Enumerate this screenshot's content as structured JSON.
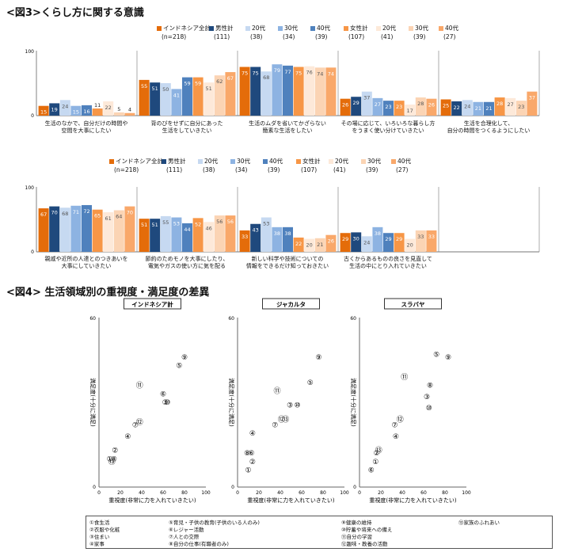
{
  "fig3": {
    "title": "<図3>くらし方に関する意識",
    "legend": [
      {
        "name": "インドネシア全計",
        "n": "(n=218)",
        "color": "#E46C0A"
      },
      {
        "name": "男性計",
        "n": "(111)",
        "color": "#1F497D"
      },
      {
        "name": "20代",
        "n": "(38)",
        "color": "#C6D9F1"
      },
      {
        "name": "30代",
        "n": "(34)",
        "color": "#8DB3E2"
      },
      {
        "name": "40代",
        "n": "(39)",
        "color": "#4F81BD"
      },
      {
        "name": "女性計",
        "n": "(107)",
        "color": "#F79646"
      },
      {
        "name": "20代",
        "n": "(41)",
        "color": "#FDE9D9"
      },
      {
        "name": "30代",
        "n": "(39)",
        "color": "#FBD4B4"
      },
      {
        "name": "40代",
        "n": "(27)",
        "color": "#F9A86A"
      }
    ]
  },
  "chart_data": [
    {
      "type": "bar",
      "title": "くらし方に関する意識 (上段)",
      "ylim": [
        0,
        100
      ],
      "yticks": [
        "0",
        "100"
      ],
      "series_names": [
        "インドネシア全計",
        "男性計",
        "20代",
        "30代",
        "40代",
        "女性計",
        "20代",
        "30代",
        "40代"
      ],
      "categories": [
        "生活のなかで、自分だけの時間や\n空間を大事にしたい",
        "背のびをせずに自分にあった\n生活をしていきたい",
        "生活のムダを省いてかざらない\n簡素な生活をしたい",
        "その場に応じて、いろいろな暮らし方\nをうまく使い分けていきたい",
        "生活を合理化して、\n自分の時間をつくるようにしたい"
      ],
      "values": [
        [
          15,
          19,
          24,
          15,
          16,
          11,
          22,
          5,
          4
        ],
        [
          55,
          51,
          50,
          41,
          59,
          59,
          51,
          62,
          67
        ],
        [
          75,
          75,
          68,
          79,
          77,
          75,
          76,
          74,
          74
        ],
        [
          26,
          29,
          37,
          27,
          23,
          23,
          17,
          28,
          26
        ],
        [
          25,
          22,
          24,
          21,
          21,
          28,
          27,
          23,
          37
        ]
      ],
      "labels": [
        [
          "15",
          "19",
          "24",
          "15",
          "16",
          "11",
          "22",
          "5",
          "4"
        ],
        [
          "55",
          "51",
          "50",
          "41",
          "59",
          "59",
          "51",
          "62",
          "67"
        ],
        [
          "75",
          "75",
          "68",
          "79",
          "77",
          "75",
          "76",
          "74",
          "74"
        ],
        [
          "26",
          "29",
          "37",
          "27",
          "23",
          "23",
          "17",
          "28",
          "26"
        ],
        [
          "25",
          "22",
          "24",
          "21",
          "21",
          "28",
          "27",
          "23",
          "37"
        ]
      ]
    },
    {
      "type": "bar",
      "title": "くらし方に関する意識 (下段)",
      "ylim": [
        0,
        100
      ],
      "yticks": [
        "0",
        "100"
      ],
      "series_names": [
        "インドネシア全計",
        "男性計",
        "20代",
        "30代",
        "40代",
        "女性計",
        "20代",
        "30代",
        "40代"
      ],
      "categories": [
        "親戚や近所の人達とのつきあいを\n大事にしていきたい",
        "節約のためモノを大事にしたり、\n電気やガスの使い方に気を配る",
        "新しい科学や技術についての\n情報をできるだけ知っておきたい",
        "古くからあるものの良さを見直して\n生活の中にとり入れていきたい"
      ],
      "values": [
        [
          67,
          70,
          68,
          71,
          72,
          65,
          61,
          64,
          70
        ],
        [
          51,
          51,
          55,
          53,
          44,
          52,
          46,
          56,
          56
        ],
        [
          33,
          43,
          53,
          38,
          38,
          22,
          20,
          21,
          26
        ],
        [
          29,
          30,
          24,
          38,
          29,
          29,
          20,
          33,
          33
        ]
      ],
      "labels": [
        [
          "67",
          "70",
          "68",
          "71",
          "72",
          "65",
          "61",
          "64",
          "70"
        ],
        [
          "51",
          "51",
          "55",
          "53",
          "44",
          "52",
          "46",
          "56",
          "56"
        ],
        [
          "33",
          "43",
          "53",
          "38",
          "38",
          "22",
          "20",
          "21",
          "26"
        ],
        [
          "29",
          "30",
          "24",
          "38",
          "29",
          "29",
          "20",
          "33",
          "33"
        ]
      ]
    },
    {
      "type": "scatter",
      "title": "インドネシア計",
      "xlabel": "重視度(非常に力を入れていきたい)",
      "ylabel": "満足度(十分に満足)",
      "xlim": [
        0,
        100
      ],
      "ylim": [
        0,
        60
      ],
      "xticks": [
        "0",
        "20",
        "40",
        "60",
        "80",
        "100"
      ],
      "yticks": [
        "0",
        "60"
      ],
      "points": [
        {
          "label": "①",
          "x": 10,
          "y": 10
        },
        {
          "label": "②",
          "x": 15,
          "y": 13
        },
        {
          "label": "③",
          "x": 62,
          "y": 30
        },
        {
          "label": "④",
          "x": 27,
          "y": 18
        },
        {
          "label": "⑤",
          "x": 75,
          "y": 43
        },
        {
          "label": "⑥",
          "x": 60,
          "y": 33
        },
        {
          "label": "⑦",
          "x": 34,
          "y": 22
        },
        {
          "label": "⑧",
          "x": 14,
          "y": 10
        },
        {
          "label": "⑨",
          "x": 80,
          "y": 46
        },
        {
          "label": "⑩",
          "x": 64,
          "y": 30
        },
        {
          "label": "⑪",
          "x": 38,
          "y": 36
        },
        {
          "label": "⑫",
          "x": 38,
          "y": 23
        },
        {
          "label": "⑬",
          "x": 12,
          "y": 9
        }
      ]
    },
    {
      "type": "scatter",
      "title": "ジャカルタ",
      "xlabel": "重視度(非常に力を入れていきたい)",
      "ylabel": "満足度(十分に満足)",
      "xlim": [
        0,
        100
      ],
      "ylim": [
        0,
        60
      ],
      "xticks": [
        "0",
        "20",
        "40",
        "60",
        "80",
        "100"
      ],
      "yticks": [
        "0",
        "60"
      ],
      "points": [
        {
          "label": "①",
          "x": 10,
          "y": 6
        },
        {
          "label": "②",
          "x": 14,
          "y": 9
        },
        {
          "label": "③",
          "x": 49,
          "y": 29
        },
        {
          "label": "④",
          "x": 14,
          "y": 19
        },
        {
          "label": "⑤",
          "x": 68,
          "y": 37
        },
        {
          "label": "⑥",
          "x": 13,
          "y": 12
        },
        {
          "label": "⑦",
          "x": 35,
          "y": 22
        },
        {
          "label": "⑧",
          "x": 9,
          "y": 12
        },
        {
          "label": "⑨",
          "x": 76,
          "y": 46
        },
        {
          "label": "⑩",
          "x": 56,
          "y": 29
        },
        {
          "label": "⑪",
          "x": 37,
          "y": 34
        },
        {
          "label": "⑫",
          "x": 41,
          "y": 24
        },
        {
          "label": "⑬",
          "x": 45,
          "y": 24
        }
      ]
    },
    {
      "type": "scatter",
      "title": "スラバヤ",
      "xlabel": "重視度(非常に力を入れていきたい)",
      "ylabel": "満足度(十分に満足)",
      "xlim": [
        0,
        100
      ],
      "ylim": [
        0,
        60
      ],
      "xticks": [
        "0",
        "20",
        "40",
        "60",
        "80",
        "100"
      ],
      "yticks": [
        "0",
        "60"
      ],
      "points": [
        {
          "label": "①",
          "x": 15,
          "y": 9
        },
        {
          "label": "②",
          "x": 16,
          "y": 12
        },
        {
          "label": "③",
          "x": 63,
          "y": 32
        },
        {
          "label": "④",
          "x": 34,
          "y": 18
        },
        {
          "label": "⑤",
          "x": 72,
          "y": 47
        },
        {
          "label": "⑥",
          "x": 11,
          "y": 6
        },
        {
          "label": "⑦",
          "x": 33,
          "y": 22
        },
        {
          "label": "⑧",
          "x": 66,
          "y": 36
        },
        {
          "label": "⑨",
          "x": 83,
          "y": 46
        },
        {
          "label": "⑩",
          "x": 65,
          "y": 28
        },
        {
          "label": "⑪",
          "x": 42,
          "y": 39
        },
        {
          "label": "⑫",
          "x": 38,
          "y": 24
        },
        {
          "label": "⑬",
          "x": 18,
          "y": 13
        }
      ]
    }
  ],
  "fig4": {
    "title": "<図4> 生活領域別の重視度・満足度の差異",
    "notes": [
      "①食生活",
      "②衣服や化粧",
      "③住まい",
      "④家事",
      "⑤育児・子供の教育(子供のいる人のみ)",
      "⑥レジャー活動",
      "⑦人との交際",
      "⑧自分の仕事(有職者のみ)",
      "⑨健康の維持",
      "⑩貯蓄や将来への備え",
      "⑪自分の学習",
      "⑫趣味・教養の活動",
      "⑬家族のふれあい"
    ]
  }
}
